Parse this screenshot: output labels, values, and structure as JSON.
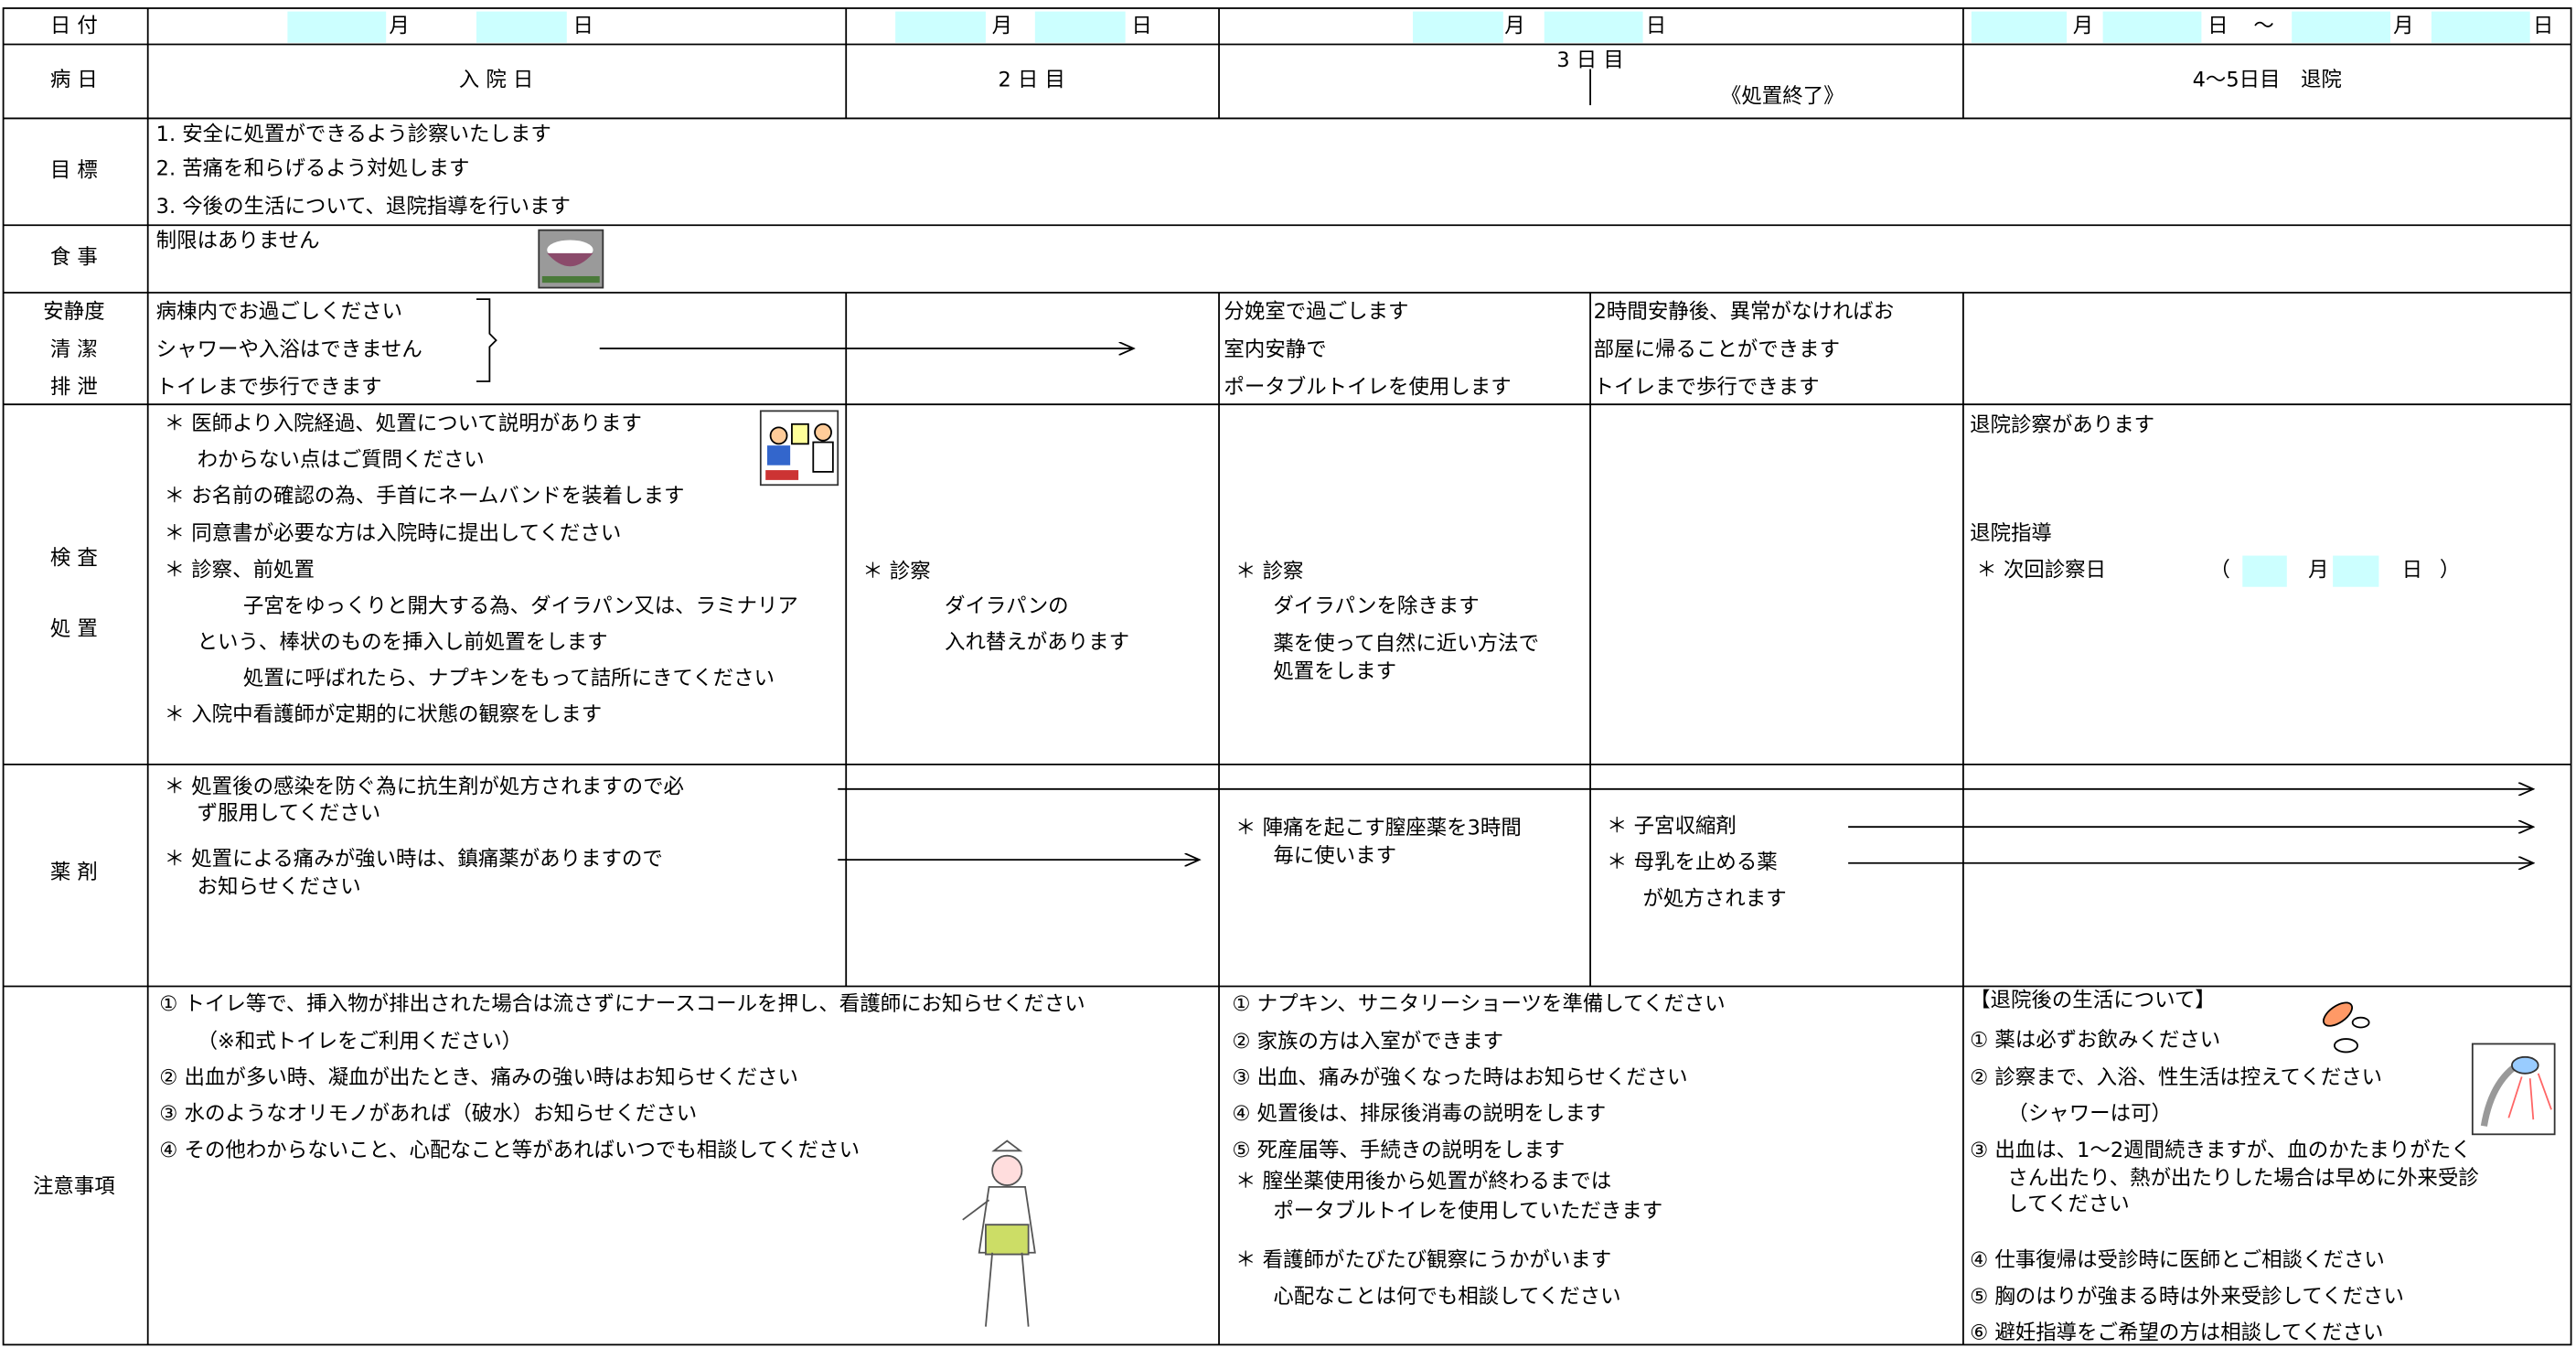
{
  "date": {
    "label": "日 付",
    "day1": [
      "月",
      "日"
    ],
    "day2": [
      "月",
      "日"
    ],
    "day3": [
      "月",
      "日"
    ],
    "day45": [
      "月",
      "日",
      "～",
      "月",
      "日"
    ]
  },
  "day": {
    "label": "病 日",
    "day1": "入 院 日",
    "day2": "2 日 目",
    "day3": "3 日 目",
    "day3_note": "《処置終了》",
    "day45": "4～5日目　退院"
  },
  "goal": {
    "label": "目 標",
    "items": [
      "1. 安全に処置ができるよう診察いたします",
      "2. 苦痛を和らげるよう対処します",
      "3. 今後の生活について、退院指導を行います"
    ]
  },
  "meal": {
    "label": "食 事",
    "text": "制限はありません"
  },
  "rest": {
    "labels": [
      "安静度",
      "清 潔",
      "排 泄"
    ],
    "day1": [
      "病棟内でお過ごしください",
      "シャワーや入浴はできません",
      "トイレまで歩行できます"
    ],
    "day3a": [
      "分娩室で過ごします",
      "室内安静で",
      "ポータブルトイレを使用します"
    ],
    "day3b": [
      "2時間安静後、異常がなければお",
      "部屋に帰ることができます",
      "トイレまで歩行できます"
    ]
  },
  "exam": {
    "labels": [
      "検 査",
      "処 置"
    ],
    "day1": [
      "＊ 医師より入院経過、処置について説明があります",
      "わからない点はご質問ください",
      "＊ お名前の確認の為、手首にネームバンドを装着します",
      "＊ 同意書が必要な方は入院時に提出してください",
      "＊ 診察、前処置",
      "子宮をゆっくりと開大する為、ダイラパン又は、ラミナリア",
      "という、棒状のものを挿入し前処置をします",
      "処置に呼ばれたら、ナプキンをもって詰所にきてください",
      "＊ 入院中看護師が定期的に状態の観察をします"
    ],
    "day2": [
      "＊ 診察",
      "ダイラパンの",
      "入れ替えがあります"
    ],
    "day3": [
      "＊ 診察",
      "ダイラパンを除きます",
      "薬を使って自然に近い方法で",
      "処置をします"
    ],
    "day45": [
      "退院診察があります",
      "退院指導",
      "＊ 次回診察日",
      "（",
      "月",
      "日",
      "）"
    ]
  },
  "drug": {
    "label": "薬 剤",
    "day1": [
      "＊ 処置後の感染を防ぐ為に抗生剤が処方されますので必",
      "ず服用してください",
      "＊ 処置による痛みが強い時は、鎮痛薬がありますので",
      "お知らせください"
    ],
    "day3a": [
      "＊ 陣痛を起こす膣座薬を3時間",
      "毎に使います"
    ],
    "day3b": [
      "＊ 子宮収縮剤",
      "＊ 母乳を止める薬",
      "が処方されます"
    ]
  },
  "notes": {
    "label": "注意事項",
    "day1": [
      "① トイレ等で、挿入物が排出された場合は流さずにナースコールを押し、看護師にお知らせください",
      "（※和式トイレをご利用ください）",
      "② 出血が多い時、凝血が出たとき、痛みの強い時はお知らせください",
      "③ 水のようなオリモノがあれば（破水）お知らせください",
      "④ その他わからないこと、心配なこと等があればいつでも相談してください"
    ],
    "day3": [
      "① ナプキン、サニタリーショーツを準備してください",
      "② 家族の方は入室ができます",
      "③ 出血、痛みが強くなった時はお知らせください",
      "④ 処置後は、排尿後消毒の説明をします",
      "⑤ 死産届等、手続きの説明をします",
      "＊ 膣坐薬使用後から処置が終わるまでは",
      "ポータブルトイレを使用していただきます",
      "＊ 看護師がたびたび観察にうかがいます",
      "心配なことは何でも相談してください"
    ],
    "day45": [
      "【退院後の生活について】",
      "① 薬は必ずお飲みください",
      "② 診察まで、入浴、性生活は控えてください",
      "（シャワーは可）",
      "③ 出血は、1～2週間続きますが、血のかたまりがたく",
      "さん出たり、熱が出たりした場合は早めに外来受診",
      "してください",
      "④ 仕事復帰は受診時に医師とご相談ください",
      "⑤ 胸のはりが強まる時は外来受診してください",
      "⑥ 避妊指導をご希望の方は相談してください"
    ]
  }
}
